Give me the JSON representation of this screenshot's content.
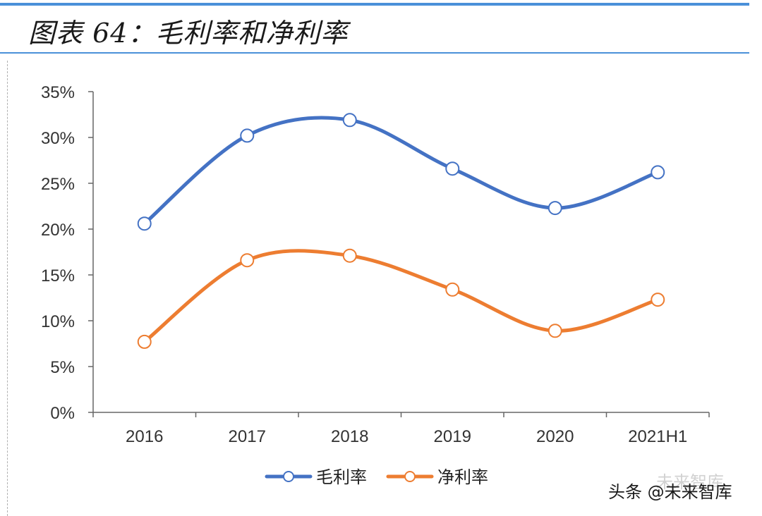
{
  "header": {
    "title": "图表 64：毛利率和净利率"
  },
  "chart_data": {
    "type": "line",
    "categories": [
      "2016",
      "2017",
      "2018",
      "2019",
      "2020",
      "2021H1"
    ],
    "series": [
      {
        "name": "毛利率",
        "color": "#4472c4",
        "values": [
          20.6,
          30.2,
          31.9,
          26.6,
          22.3,
          26.2
        ]
      },
      {
        "name": "净利率",
        "color": "#ed7d31",
        "values": [
          7.7,
          16.6,
          17.1,
          13.4,
          8.9,
          12.3
        ]
      }
    ],
    "yticks": [
      "35%",
      "30%",
      "25%",
      "20%",
      "15%",
      "10%",
      "5%",
      "0%"
    ],
    "ylim": [
      0,
      35
    ],
    "ytick_step": 5,
    "legend": "bottom",
    "grid": false
  },
  "watermark": {
    "text": "头条 @未来智库",
    "ghost_text": "未来智库",
    "icon": "wechat-icon"
  }
}
